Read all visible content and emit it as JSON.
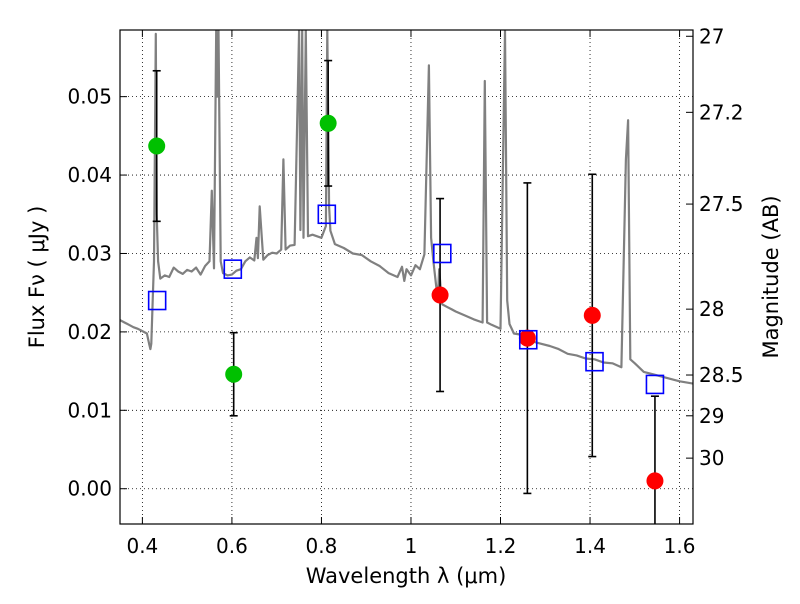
{
  "chart_data": {
    "type": "scatter",
    "xlabel": "Wavelength  λ (μm)",
    "ylabel": "Flux  Fν  ( μJy )",
    "y2label": "Magnitude (AB)",
    "xlim": [
      0.35,
      1.63
    ],
    "ylim": [
      -0.0045,
      0.0585
    ],
    "grid": true,
    "x_ticks": [
      {
        "v": 0.4,
        "label": "0.4"
      },
      {
        "v": 0.6,
        "label": "0.6"
      },
      {
        "v": 0.8,
        "label": "0.8"
      },
      {
        "v": 1.0,
        "label": "1"
      },
      {
        "v": 1.2,
        "label": "1.2"
      },
      {
        "v": 1.4,
        "label": "1.4"
      },
      {
        "v": 1.6,
        "label": "1.6"
      }
    ],
    "y_ticks": [
      {
        "v": 0.0,
        "label": "0.00"
      },
      {
        "v": 0.01,
        "label": "0.01"
      },
      {
        "v": 0.02,
        "label": "0.02"
      },
      {
        "v": 0.03,
        "label": "0.03"
      },
      {
        "v": 0.04,
        "label": "0.04"
      },
      {
        "v": 0.05,
        "label": "0.05"
      }
    ],
    "y2_ticks": [
      {
        "flux": 0.0577,
        "label": "27"
      },
      {
        "flux": 0.048,
        "label": "27.2"
      },
      {
        "flux": 0.0363,
        "label": "27.5"
      },
      {
        "flux": 0.0229,
        "label": "28"
      },
      {
        "flux": 0.0145,
        "label": "28.5"
      },
      {
        "flux": 0.0093,
        "label": "29"
      },
      {
        "flux": 0.0039,
        "label": "30"
      }
    ],
    "series": [
      {
        "marker": "line",
        "color": "#808080",
        "x": [
          0.35,
          0.36,
          0.37,
          0.38,
          0.39,
          0.4,
          0.41,
          0.415,
          0.418,
          0.42,
          0.423,
          0.426,
          0.43,
          0.432,
          0.435,
          0.44,
          0.45,
          0.46,
          0.47,
          0.48,
          0.49,
          0.5,
          0.51,
          0.52,
          0.53,
          0.54,
          0.55,
          0.555,
          0.56,
          0.565,
          0.567,
          0.57,
          0.575,
          0.58,
          0.59,
          0.6,
          0.61,
          0.62,
          0.63,
          0.64,
          0.65,
          0.655,
          0.658,
          0.662,
          0.67,
          0.68,
          0.69,
          0.7,
          0.71,
          0.715,
          0.72,
          0.73,
          0.74,
          0.75,
          0.753,
          0.757,
          0.76,
          0.765,
          0.77,
          0.78,
          0.8,
          0.81,
          0.813,
          0.817,
          0.82,
          0.83,
          0.85,
          0.87,
          0.89,
          0.91,
          0.93,
          0.95,
          0.97,
          0.98,
          0.985,
          0.99,
          1.0,
          1.01,
          1.02,
          1.03,
          1.04,
          1.045,
          1.05,
          1.06,
          1.063,
          1.067,
          1.07,
          1.08,
          1.09,
          1.1,
          1.12,
          1.14,
          1.16,
          1.165,
          1.17,
          1.18,
          1.2,
          1.21,
          1.215,
          1.22,
          1.23,
          1.25,
          1.27,
          1.29,
          1.31,
          1.33,
          1.35,
          1.37,
          1.39,
          1.41,
          1.43,
          1.45,
          1.47,
          1.48,
          1.485,
          1.49,
          1.5,
          1.52,
          1.54,
          1.56,
          1.58,
          1.6,
          1.63
        ],
        "y": [
          0.0215,
          0.0212,
          0.0209,
          0.0206,
          0.0204,
          0.0201,
          0.0198,
          0.0185,
          0.0178,
          0.0185,
          0.024,
          0.029,
          0.058,
          0.035,
          0.029,
          0.0268,
          0.0272,
          0.027,
          0.0282,
          0.0277,
          0.0274,
          0.0279,
          0.0277,
          0.0282,
          0.0273,
          0.0284,
          0.029,
          0.038,
          0.0281,
          0.0585,
          0.05,
          0.0585,
          0.029,
          0.0275,
          0.0272,
          0.0273,
          0.0278,
          0.028,
          0.029,
          0.0295,
          0.0291,
          0.032,
          0.0294,
          0.036,
          0.0292,
          0.0298,
          0.0301,
          0.03,
          0.0305,
          0.042,
          0.0305,
          0.031,
          0.0311,
          0.0585,
          0.033,
          0.0585,
          0.032,
          0.0585,
          0.0322,
          0.0324,
          0.032,
          0.0335,
          0.0585,
          0.036,
          0.0329,
          0.0312,
          0.0307,
          0.03,
          0.0298,
          0.029,
          0.0284,
          0.0275,
          0.027,
          0.0283,
          0.0265,
          0.028,
          0.0272,
          0.0285,
          0.028,
          0.0299,
          0.054,
          0.032,
          0.029,
          0.024,
          0.028,
          0.025,
          0.0235,
          0.0232,
          0.0229,
          0.0226,
          0.0221,
          0.0216,
          0.0212,
          0.052,
          0.0212,
          0.0209,
          0.0204,
          0.0585,
          0.024,
          0.021,
          0.0198,
          0.0196,
          0.0188,
          0.0185,
          0.0182,
          0.0178,
          0.0172,
          0.017,
          0.0166,
          0.0165,
          0.0161,
          0.016,
          0.0155,
          0.042,
          0.047,
          0.0165,
          0.016,
          0.0149,
          0.0146,
          0.0143,
          0.014,
          0.0137,
          0.0134
        ]
      },
      {
        "marker": "circle",
        "color": "#00c000",
        "x": [
          0.432,
          0.604,
          0.815
        ],
        "y": [
          0.0437,
          0.0146,
          0.0466
        ],
        "err": [
          0.0096,
          0.0053,
          0.008
        ]
      },
      {
        "marker": "circle",
        "color": "#ff0000",
        "x": [
          1.065,
          1.26,
          1.405,
          1.545
        ],
        "y": [
          0.0247,
          0.0192,
          0.0221,
          0.001
        ],
        "err": [
          0.0123,
          0.0198,
          0.018,
          0.0108
        ]
      },
      {
        "marker": "square",
        "color": "#0000ff",
        "x": [
          0.433,
          0.602,
          0.812,
          1.07,
          1.262,
          1.41,
          1.545
        ],
        "y": [
          0.024,
          0.028,
          0.035,
          0.03,
          0.019,
          0.0162,
          0.0133
        ]
      }
    ]
  }
}
